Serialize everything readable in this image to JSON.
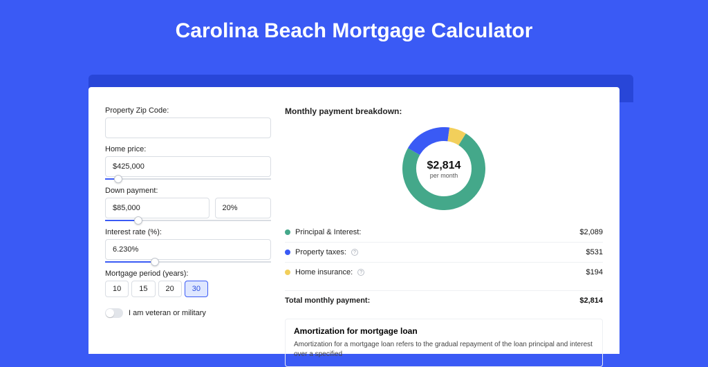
{
  "page": {
    "title": "Carolina Beach Mortgage Calculator",
    "background_color": "#3a5af5",
    "accent_color": "#2846d8",
    "card_color": "#ffffff"
  },
  "form": {
    "zip_label": "Property Zip Code:",
    "zip_value": "",
    "home_price_label": "Home price:",
    "home_price_value": "$425,000",
    "home_price_slider_pct": 8,
    "down_payment_label": "Down payment:",
    "down_payment_value": "$85,000",
    "down_payment_pct_value": "20%",
    "down_payment_slider_pct": 20,
    "interest_label": "Interest rate (%):",
    "interest_value": "6.230%",
    "interest_slider_pct": 30,
    "period_label": "Mortgage period (years):",
    "period_options": [
      "10",
      "15",
      "20",
      "30"
    ],
    "period_selected_index": 3,
    "veteran_label": "I am veteran or military",
    "veteran_on": false
  },
  "breakdown": {
    "title": "Monthly payment breakdown:",
    "center_amount": "$2,814",
    "center_sub": "per month",
    "donut": {
      "size": 120,
      "thickness": 20,
      "segments": [
        {
          "label": "Principal & Interest:",
          "value": "$2,089",
          "num": 2089,
          "color": "#44a88a",
          "help": false
        },
        {
          "label": "Property taxes:",
          "value": "$531",
          "num": 531,
          "color": "#3a5af5",
          "help": true
        },
        {
          "label": "Home insurance:",
          "value": "$194",
          "num": 194,
          "color": "#f2cf5b",
          "help": true
        }
      ]
    },
    "total_label": "Total monthly payment:",
    "total_value": "$2,814"
  },
  "amortization": {
    "title": "Amortization for mortgage loan",
    "text": "Amortization for a mortgage loan refers to the gradual repayment of the loan principal and interest over a specified"
  }
}
